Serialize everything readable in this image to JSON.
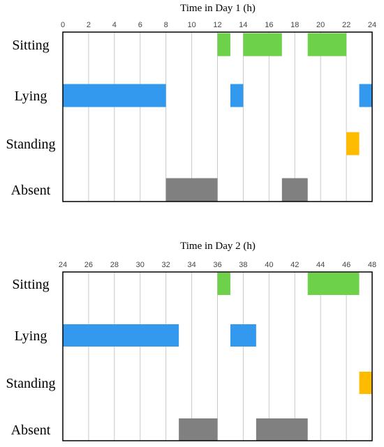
{
  "chart_data": [
    {
      "type": "bar",
      "subtype": "timeline",
      "title": "Time in Day 1 (h)",
      "xlim": [
        0,
        24
      ],
      "xticks": [
        0,
        2,
        4,
        6,
        8,
        10,
        12,
        14,
        16,
        18,
        20,
        22,
        24
      ],
      "grid": true,
      "categories": [
        "Sitting",
        "Lying",
        "Standing",
        "Absent"
      ],
      "series": [
        {
          "category": "Sitting",
          "color": "#6dd14a",
          "intervals": [
            [
              12,
              13
            ],
            [
              14,
              17
            ],
            [
              19,
              22
            ]
          ]
        },
        {
          "category": "Lying",
          "color": "#3399ee",
          "intervals": [
            [
              0,
              8
            ],
            [
              13,
              14
            ],
            [
              23,
              24
            ]
          ]
        },
        {
          "category": "Standing",
          "color": "#ffbb00",
          "intervals": [
            [
              22,
              23
            ]
          ]
        },
        {
          "category": "Absent",
          "color": "#808080",
          "intervals": [
            [
              8,
              12
            ],
            [
              17,
              19
            ]
          ]
        }
      ]
    },
    {
      "type": "bar",
      "subtype": "timeline",
      "title": "Time in Day 2 (h)",
      "xlim": [
        24,
        48
      ],
      "xticks": [
        24,
        26,
        28,
        30,
        32,
        34,
        36,
        38,
        40,
        42,
        44,
        46,
        48
      ],
      "grid": true,
      "categories": [
        "Sitting",
        "Lying",
        "Standing",
        "Absent"
      ],
      "series": [
        {
          "category": "Sitting",
          "color": "#6dd14a",
          "intervals": [
            [
              36,
              37
            ],
            [
              43,
              47
            ]
          ]
        },
        {
          "category": "Lying",
          "color": "#3399ee",
          "intervals": [
            [
              24,
              33
            ],
            [
              37,
              39
            ]
          ]
        },
        {
          "category": "Standing",
          "color": "#ffbb00",
          "intervals": [
            [
              47,
              48
            ]
          ]
        },
        {
          "category": "Absent",
          "color": "#808080",
          "intervals": [
            [
              33,
              36
            ],
            [
              39,
              43
            ]
          ]
        }
      ]
    }
  ]
}
